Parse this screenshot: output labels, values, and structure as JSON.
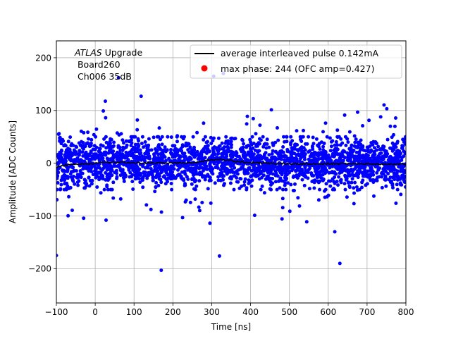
{
  "chart_data": {
    "type": "scatter",
    "title": "",
    "xlabel": "Time [ns]",
    "ylabel": "Amplitude [ADC Counts]",
    "xlim": [
      -100,
      800
    ],
    "ylim": [
      -265,
      232
    ],
    "xticks": [
      -100,
      0,
      100,
      200,
      300,
      400,
      500,
      600,
      700,
      800
    ],
    "yticks": [
      -200,
      -100,
      0,
      100,
      200
    ],
    "xtick_labels": [
      "−100",
      "0",
      "100",
      "200",
      "300",
      "400",
      "500",
      "600",
      "700",
      "800"
    ],
    "ytick_labels": [
      "−200",
      "−100",
      "0",
      "100",
      "200"
    ],
    "grid": true,
    "legend_position": "top-right",
    "annotation": {
      "line1_italic": "ATLAS",
      "line1_rest": " Upgrade",
      "line2": " Board260",
      "line3": " Ch006 35dB"
    },
    "series": [
      {
        "name": "max phase: 244 (OFC amp=0.427)",
        "kind": "scatter",
        "color": "#0000ff",
        "legend_marker_color": "#ff0000",
        "core_band": [
          -45,
          45
        ],
        "typical_outlier_range": [
          -130,
          150
        ],
        "sample_extremes": [
          {
            "x": 170,
            "y": -203
          },
          {
            "x": 630,
            "y": -190
          },
          {
            "x": 320,
            "y": -176
          },
          {
            "x": -100,
            "y": -175
          },
          {
            "x": 305,
            "y": 165
          },
          {
            "x": 330,
            "y": 170
          },
          {
            "x": 60,
            "y": 162
          }
        ]
      },
      {
        "name": "average interleaved pulse 0.142mA",
        "kind": "line",
        "color": "#000000",
        "x": [
          -100,
          -80,
          -50,
          0,
          50,
          100,
          150,
          200,
          250,
          280,
          300,
          320,
          340,
          360,
          400,
          450,
          500,
          550,
          600,
          650,
          700,
          750,
          800
        ],
        "values": [
          -8,
          -4,
          -2,
          0,
          2,
          1,
          0,
          0,
          1,
          4,
          6,
          8,
          6,
          3,
          1,
          0,
          -1,
          -1,
          -1,
          -1,
          -1,
          -2,
          -2
        ]
      }
    ]
  }
}
